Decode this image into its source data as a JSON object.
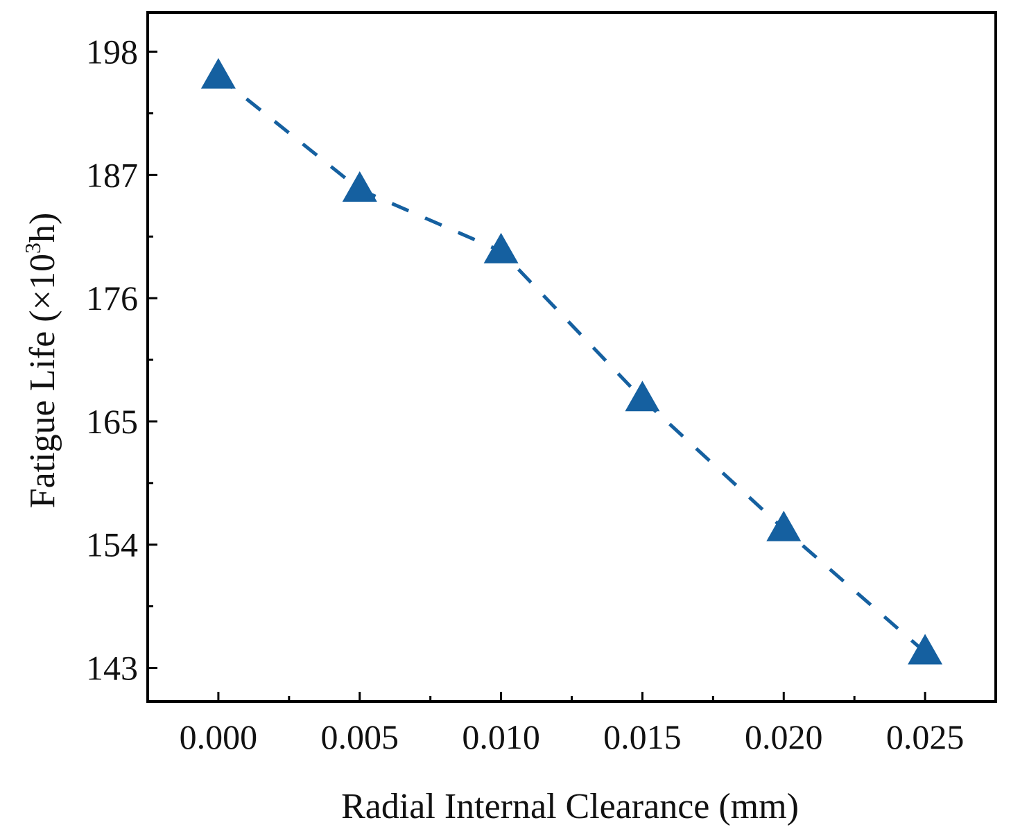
{
  "chart_data": {
    "type": "line",
    "xlabel": "Radial Internal Clearance (mm)",
    "ylabel_main": "Fatigue Life (×10",
    "ylabel_sup": "3",
    "ylabel_tail": "h)",
    "x_ticks": [
      "0.000",
      "0.005",
      "0.010",
      "0.015",
      "0.020",
      "0.025"
    ],
    "y_ticks": [
      "143",
      "154",
      "165",
      "176",
      "187",
      "198"
    ],
    "xlim": [
      -0.0025,
      0.0275
    ],
    "ylim": [
      140,
      201.5
    ],
    "grid": false,
    "marker": "triangle",
    "line_style": "dashed",
    "series": [
      {
        "x": [
          0.0,
          0.005,
          0.01,
          0.015,
          0.02,
          0.025
        ],
        "y": [
          195.8,
          185.7,
          180.2,
          167.0,
          155.4,
          144.4
        ],
        "color": "#1560a0"
      }
    ]
  }
}
